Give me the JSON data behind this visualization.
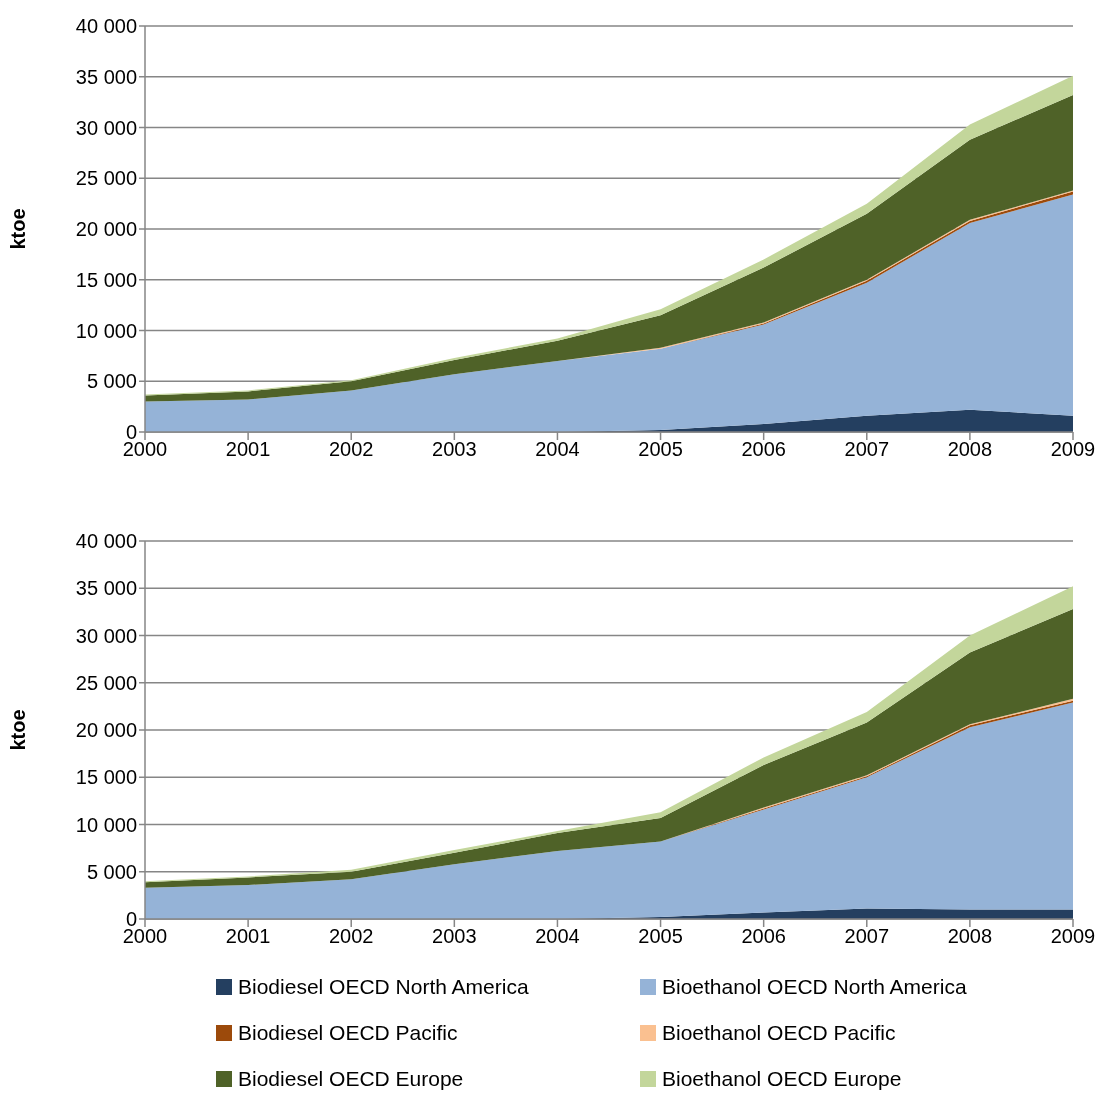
{
  "chart_data": [
    {
      "type": "area",
      "stacked": true,
      "ylabel": "ktoe",
      "grid": "y",
      "categories": [
        "2000",
        "2001",
        "2002",
        "2003",
        "2004",
        "2005",
        "2006",
        "2007",
        "2008",
        "2009"
      ],
      "ylim": [
        0,
        40000
      ],
      "yticks": [
        0,
        {
          "value": 5000,
          "label": "5 000"
        },
        {
          "value": 10000,
          "label": "10 000"
        },
        {
          "value": 15000,
          "label": "15 000"
        },
        {
          "value": 20000,
          "label": "20 000"
        },
        {
          "value": 25000,
          "label": "25 000"
        },
        {
          "value": 30000,
          "label": "30 000"
        },
        {
          "value": 35000,
          "label": "35 000"
        },
        {
          "value": 40000,
          "label": "40 000"
        }
      ],
      "series": [
        {
          "color": "#243f60",
          "values": [
            0,
            0,
            0,
            0,
            0,
            200,
            800,
            1600,
            2200,
            1600
          ]
        },
        {
          "color": "#95b3d7",
          "values": [
            3000,
            3200,
            4100,
            5700,
            7000,
            8000,
            9800,
            13100,
            18400,
            21800
          ]
        },
        {
          "color": "#9c4a0b",
          "values": [
            0,
            0,
            0,
            0,
            0,
            0,
            100,
            200,
            200,
            300
          ]
        },
        {
          "color": "#fac090",
          "values": [
            0,
            0,
            0,
            0,
            0,
            100,
            100,
            100,
            100,
            100
          ]
        },
        {
          "color": "#4f6228",
          "values": [
            600,
            800,
            900,
            1400,
            2000,
            3200,
            5400,
            6500,
            7900,
            9400
          ]
        },
        {
          "color": "#c3d69b",
          "values": [
            100,
            100,
            100,
            200,
            200,
            600,
            800,
            1000,
            1500,
            1900
          ]
        }
      ]
    },
    {
      "type": "area",
      "stacked": true,
      "ylabel": "ktoe",
      "grid": "y",
      "legend": "bottom",
      "categories": [
        "2000",
        "2001",
        "2002",
        "2003",
        "2004",
        "2005",
        "2006",
        "2007",
        "2008",
        "2009"
      ],
      "ylim": [
        0,
        40000
      ],
      "yticks": [
        0,
        {
          "value": 5000,
          "label": "5 000"
        },
        {
          "value": 10000,
          "label": "10 000"
        },
        {
          "value": 15000,
          "label": "15 000"
        },
        {
          "value": 20000,
          "label": "20 000"
        },
        {
          "value": 25000,
          "label": "25 000"
        },
        {
          "value": 30000,
          "label": "30 000"
        },
        {
          "value": 35000,
          "label": "35 000"
        },
        {
          "value": 40000,
          "label": "40 000"
        }
      ],
      "series": [
        {
          "name": "Biodiesel OECD North America",
          "color": "#243f60",
          "values": [
            0,
            0,
            0,
            0,
            0,
            200,
            700,
            1100,
            1000,
            1000
          ]
        },
        {
          "name": "Bioethanol OECD North America",
          "color": "#95b3d7",
          "values": [
            3300,
            3600,
            4200,
            5800,
            7200,
            8000,
            10900,
            13900,
            19300,
            21900
          ]
        },
        {
          "name": "Biodiesel OECD Pacific",
          "color": "#9c4a0b",
          "values": [
            0,
            0,
            0,
            0,
            0,
            0,
            100,
            100,
            200,
            200
          ]
        },
        {
          "name": "Bioethanol OECD Pacific",
          "color": "#fac090",
          "values": [
            0,
            0,
            0,
            0,
            0,
            0,
            100,
            100,
            100,
            200
          ]
        },
        {
          "name": "Biodiesel OECD Europe",
          "color": "#4f6228",
          "values": [
            600,
            800,
            800,
            1200,
            1900,
            2500,
            4500,
            5600,
            7600,
            9500
          ]
        },
        {
          "name": "Bioethanol OECD Europe",
          "color": "#c3d69b",
          "values": [
            100,
            100,
            200,
            300,
            200,
            600,
            800,
            1100,
            1800,
            2400
          ]
        }
      ]
    }
  ]
}
